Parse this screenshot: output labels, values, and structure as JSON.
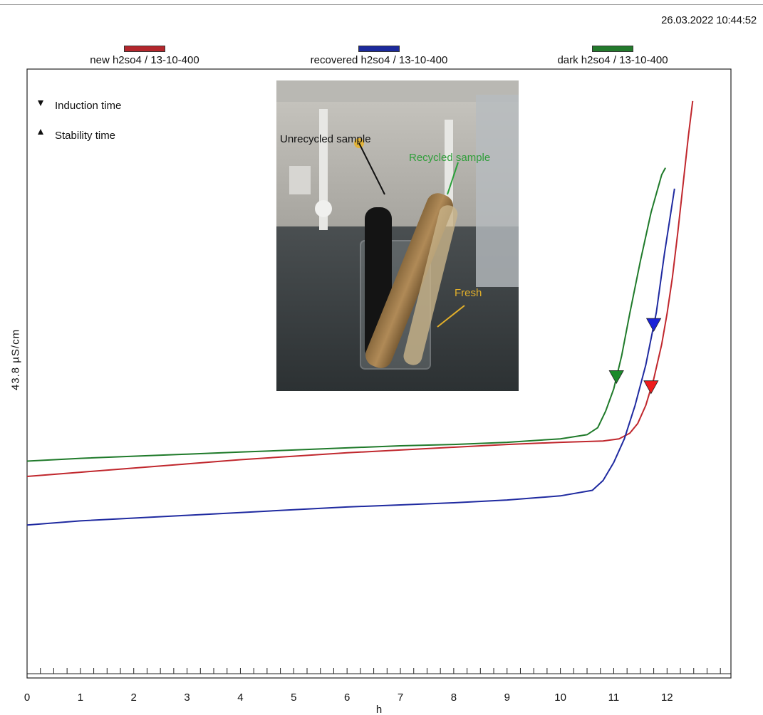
{
  "timestamp": "26.03.2022 10:44:52",
  "colors": {
    "new": "#c0272d",
    "recovered": "#1f2aa0",
    "dark": "#1f7a2a",
    "marker_blue": "#1a22d8",
    "marker_red": "#ee1c1c",
    "marker_green": "#1a8a2a"
  },
  "legend": [
    {
      "label": "new h2so4 / 13-10-400",
      "color": "#b3262c"
    },
    {
      "label": "recovered h2so4 / 13-10-400",
      "color": "#1c2a9c"
    },
    {
      "label": "dark h2so4 / 13-10-400",
      "color": "#237a2c"
    }
  ],
  "marker_legend": {
    "induction": {
      "label": "Induction time",
      "symbol": "down-triangle"
    },
    "stability": {
      "label": "Stability time",
      "symbol": "up-triangle"
    }
  },
  "photo_labels": {
    "unrecycled": "Unrecycled sample",
    "recycled": "Recycled sample",
    "fresh": "Fresh"
  },
  "chart_data": {
    "type": "line",
    "xlabel": "h",
    "ylabel": "43.8 µS/cm",
    "xlim": [
      0,
      13
    ],
    "ylim": [
      0,
      43.8
    ],
    "xticks": [
      0,
      1,
      2,
      3,
      4,
      5,
      6,
      7,
      8,
      9,
      10,
      11,
      12
    ],
    "minor_tick_step": 0.25,
    "grid": false,
    "legend_position": "top",
    "series": [
      {
        "name": "new h2so4 / 13-10-400",
        "color": "#c0272d",
        "points": [
          [
            0,
            14.5
          ],
          [
            1,
            14.8
          ],
          [
            2,
            15.1
          ],
          [
            3,
            15.4
          ],
          [
            4,
            15.7
          ],
          [
            5,
            15.95
          ],
          [
            6,
            16.2
          ],
          [
            7,
            16.4
          ],
          [
            8,
            16.6
          ],
          [
            9,
            16.8
          ],
          [
            10,
            16.95
          ],
          [
            10.8,
            17.05
          ],
          [
            11.1,
            17.2
          ],
          [
            11.3,
            17.6
          ],
          [
            11.45,
            18.3
          ],
          [
            11.6,
            19.6
          ],
          [
            11.75,
            21.5
          ],
          [
            11.9,
            24.0
          ],
          [
            12.0,
            26.2
          ],
          [
            12.1,
            28.8
          ],
          [
            12.2,
            32.0
          ],
          [
            12.3,
            35.5
          ],
          [
            12.4,
            39.0
          ],
          [
            12.48,
            41.5
          ]
        ],
        "induction_time": 11.7
      },
      {
        "name": "recovered h2so4 / 13-10-400",
        "color": "#1f2aa0",
        "points": [
          [
            0,
            11.0
          ],
          [
            1,
            11.3
          ],
          [
            2,
            11.5
          ],
          [
            3,
            11.7
          ],
          [
            4,
            11.9
          ],
          [
            5,
            12.1
          ],
          [
            6,
            12.3
          ],
          [
            7,
            12.45
          ],
          [
            8,
            12.6
          ],
          [
            9,
            12.8
          ],
          [
            10,
            13.1
          ],
          [
            10.6,
            13.5
          ],
          [
            10.8,
            14.2
          ],
          [
            11.0,
            15.5
          ],
          [
            11.2,
            17.2
          ],
          [
            11.4,
            19.6
          ],
          [
            11.6,
            22.5
          ],
          [
            11.8,
            26.3
          ],
          [
            11.95,
            30.5
          ],
          [
            12.1,
            34.2
          ],
          [
            12.14,
            35.2
          ]
        ],
        "induction_time": 11.75
      },
      {
        "name": "dark h2so4 / 13-10-400",
        "color": "#1f7a2a",
        "points": [
          [
            0,
            15.6
          ],
          [
            1,
            15.8
          ],
          [
            2,
            15.95
          ],
          [
            3,
            16.1
          ],
          [
            4,
            16.25
          ],
          [
            5,
            16.4
          ],
          [
            6,
            16.55
          ],
          [
            7,
            16.7
          ],
          [
            8,
            16.8
          ],
          [
            9,
            16.95
          ],
          [
            10,
            17.2
          ],
          [
            10.5,
            17.5
          ],
          [
            10.7,
            18.0
          ],
          [
            10.85,
            19.2
          ],
          [
            11.0,
            20.8
          ],
          [
            11.15,
            23.2
          ],
          [
            11.3,
            26.2
          ],
          [
            11.5,
            30.0
          ],
          [
            11.7,
            33.5
          ],
          [
            11.9,
            36.2
          ],
          [
            11.97,
            36.7
          ]
        ],
        "induction_time": 11.05
      }
    ]
  }
}
